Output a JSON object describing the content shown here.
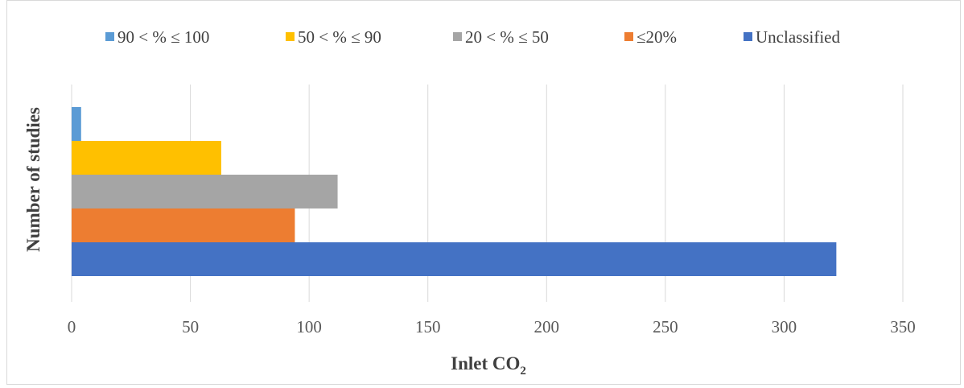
{
  "chart_data": {
    "type": "bar",
    "orientation": "horizontal",
    "title": "",
    "xlabel": "Inlet CO",
    "xlabel_subscript": "2",
    "ylabel": "Number of studies",
    "xlim": [
      0,
      350
    ],
    "xticks": [
      0,
      50,
      100,
      150,
      200,
      250,
      300,
      350
    ],
    "grid": "vertical",
    "legend_position": "top",
    "series": [
      {
        "name": "90 < % ≤ 100",
        "value": 4,
        "color": "#5b9bd5"
      },
      {
        "name": "50 < % ≤ 90",
        "value": 63,
        "color": "#ffc000"
      },
      {
        "name": "20 < % ≤ 50",
        "value": 112,
        "color": "#a5a5a5"
      },
      {
        "name": "≤20%",
        "value": 94,
        "color": "#ed7d31"
      },
      {
        "name": "Unclassified",
        "value": 322,
        "color": "#4472c4"
      }
    ]
  }
}
